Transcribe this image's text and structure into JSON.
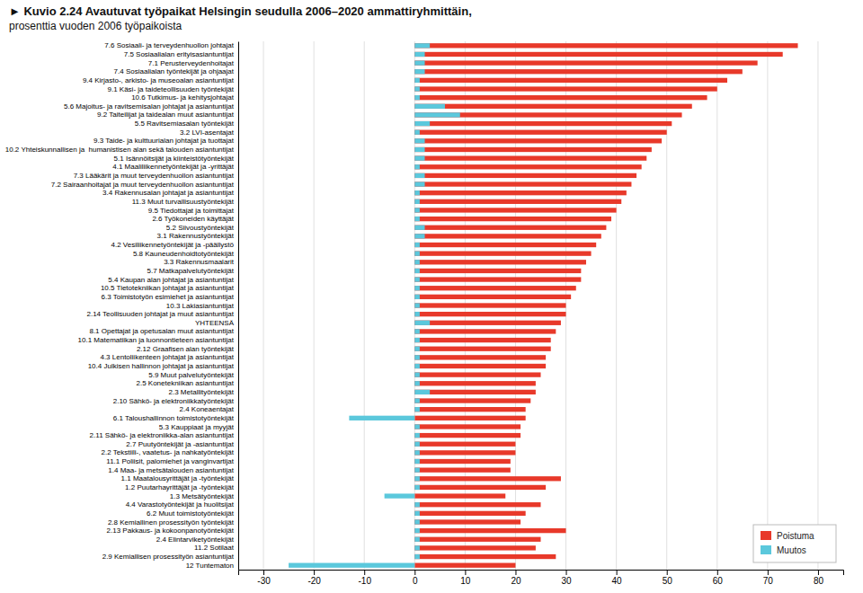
{
  "chart_data": {
    "type": "bar",
    "orientation": "horizontal",
    "title": "► Kuvio 2.24 Avautuvat työpaikat Helsingin seudulla 2006–2020 ammattiryhmittäin,",
    "subtitle": "prosenttia vuoden 2006 työpaikoista",
    "categories": [
      "7.6 Sosiaali- ja terveydenhuollon johtajat",
      "7.5 Sosiaalialan erityisasiantuntijat",
      "7.1 Perusterveydenhoitajat",
      "7.4 Sosiaalialan työntekijät ja ohjaajat",
      "9.4 Kirjasto-, arkisto- ja museoalan asiantuntijat",
      "9.1 Käsi- ja taideteollisuuden työntekijät",
      "10.6 Tutkimus- ja kehitysjohtajat",
      "5.6 Majoitus- ja ravitsemisalan johtajat ja asiantuntijat",
      "9.2 Taiteilijat ja taidealan muut asiantuntijat",
      "5.5 Ravitsemiasalan työntekijät",
      "3.2 LVI-asentajat",
      "9.3 Taide- ja kulttuurialan johtajat ja tuottajat",
      "10.2 Yhteiskunnallisen ja  humanistisen alan sekä talouden asiantuntijat",
      "5.1 Isännöitsijät ja kiinteistötyöntekijät",
      "4.1 Maaliliikennetyöntekijät ja -yrittäjät",
      "7.3 Lääkärit ja muut terveydenhuollon asiantuntijat",
      "7.2 Sairaanhoitajat ja muut terveydenhuollon asiantuntijat",
      "3.4 Rakennusalan johtajat ja asiantuntijat",
      "11.3 Muut turvallisuustyöntekijät",
      "9.5 Tiedottajat ja toimittajat",
      "2.6 Työkoneiden käyttäjät",
      "5.2 Siivoustyöntekijät",
      "3.1 Rakennustyöntekijät",
      "4.2 Vesiliikennetyöntekijät ja -päällystö",
      "5.8 Kauneudenhoidtotyöntekijät",
      "3.3 Rakennusmaalarit",
      "5.7 Matkapalvelutyöntekijät",
      "5.4 Kaupan alan johtajat ja asiantuntijat",
      "10.5 Tietotekniikan johtajat ja asiantuntijat",
      "6.3 Toimistotyön esimiehet ja asiantuntijat",
      "10.3 Lakiasiantuntijat",
      "2.14 Teollisuuden johtajat ja muut asiantuntijat",
      "YHTEENSÄ",
      "8.1 Opettajat ja opetusalan muut asiantuntijat",
      "10.1 Matematiikan ja luonnontieteen asiantuntijat",
      "2.12 Graafisen alan työntekijät",
      "4.3 Lentoliikenteen johtajat ja asiantuntijat",
      "10.4 Julkisen hallinnon johtajat ja asiantuntijat",
      "5.9 Muut palvelutyöntekijät",
      "2.5 Konetekniikan asiantuntijat",
      "2.3 Metallityöntekijät",
      "2.10 Sähkö- ja elektroniikkatyöntekijät",
      "2.4 Koneaentajat",
      "6.1 Taloushallinnon toimistotyöntekijät",
      "5.3 Kauppiaat ja myyjät",
      "2.11 Sähkö- ja elektroniikka-alan asiantuntijat",
      "2.7 Puutyöntekijät ja -asiantuntijat",
      "2.2 Tekstiili-, vaatetus- ja nahkatyöntekijät",
      "11.1 Poliisit, palomiehet ja vanginvartijat",
      "1.4 Maa- ja metsätalouden asiantuntijat",
      "1.1 Maatalousyrittäjät ja -työntekijät",
      "1.2 Puutarhayrittäjät ja -työntekijät",
      "1.3 Metsätyöntekijät",
      "4.4 Varastotyöntekijät ja huolitsijat",
      "6.2 Muut toimistotyöntekijät",
      "2.8 Kemiallinen prosessityön työntekijät",
      "2.13 Pakkaus- ja kokoonpanotyöntekijät",
      "2.4 Elintarviketyöntekijät",
      "11.2 Sotilaat",
      "2.9 Kemiallisen prosessityön asiantuntijat",
      "12 Tuntematon"
    ],
    "series": [
      {
        "name": "Poistuma",
        "color": "#e8392a",
        "values": [
          76,
          73,
          68,
          65,
          62,
          60,
          58,
          55,
          53,
          51,
          50,
          49,
          47,
          46,
          45,
          44,
          43,
          42,
          41,
          40,
          39,
          38,
          37,
          36,
          35,
          34,
          33,
          33,
          32,
          31,
          30,
          30,
          29,
          28,
          27,
          27,
          26,
          26,
          25,
          24,
          24,
          23,
          22,
          22,
          21,
          21,
          20,
          20,
          19,
          19,
          29,
          26,
          18,
          25,
          22,
          21,
          30,
          25,
          24,
          28,
          20
        ]
      },
      {
        "name": "Muutos",
        "color": "#5bc8dc",
        "values": [
          3,
          2,
          2,
          2,
          1,
          1,
          1,
          6,
          9,
          3,
          1,
          2,
          2,
          2,
          1,
          2,
          2,
          1,
          1,
          1,
          1,
          2,
          2,
          1,
          1,
          1,
          1,
          1,
          1,
          1,
          1,
          1,
          3,
          1,
          1,
          1,
          1,
          1,
          1,
          1,
          3,
          1,
          1,
          -13,
          1,
          1,
          1,
          1,
          1,
          1,
          1,
          1,
          -6,
          1,
          1,
          1,
          1,
          1,
          1,
          1,
          -25
        ]
      }
    ],
    "xlim": [
      -35,
      85
    ],
    "xticks": [
      -30,
      -20,
      -10,
      0,
      10,
      20,
      30,
      40,
      50,
      60,
      70,
      80
    ],
    "grid": true,
    "legend": "lower right"
  }
}
